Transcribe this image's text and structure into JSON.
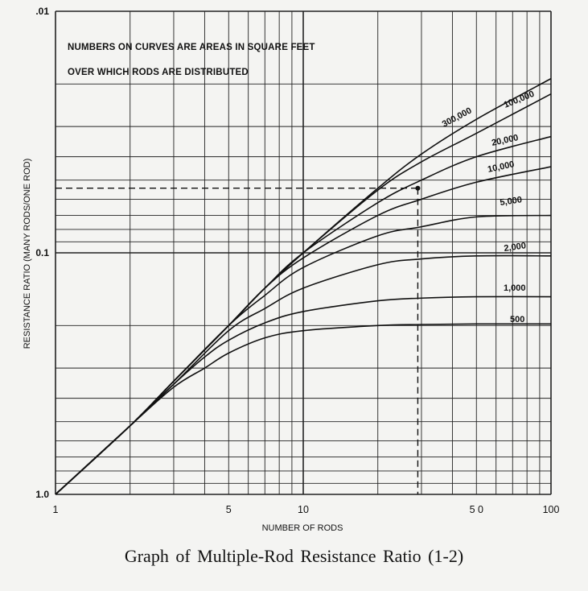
{
  "caption": "Graph of Multiple-Rod Resistance Ratio (1-2)",
  "chart_data": {
    "type": "line",
    "title": "",
    "xlabel": "NUMBER OF RODS",
    "ylabel": "RESISTANCE RATIO (MANY RODS/ONE ROD)",
    "x_scale": "log",
    "y_scale": "log",
    "y_direction": "reversed",
    "xlim": [
      1,
      100
    ],
    "ylim": [
      1.0,
      0.01
    ],
    "x_ticks": [
      {
        "value": 1,
        "label": "1"
      },
      {
        "value": 5,
        "label": "5"
      },
      {
        "value": 10,
        "label": "10"
      },
      {
        "value": 50,
        "label": "5 0"
      },
      {
        "value": 100,
        "label": "100"
      }
    ],
    "y_ticks": [
      {
        "value": 0.01,
        "label": ".01"
      },
      {
        "value": 0.1,
        "label": "0.1"
      },
      {
        "value": 1.0,
        "label": "1.0"
      }
    ],
    "grid": true,
    "notes": [
      "NUMBERS ON CURVES ARE AREAS IN SQUARE FEET",
      "OVER WHICH RODS ARE DISTRIBUTED"
    ],
    "series": [
      {
        "name": "500",
        "x": [
          1,
          2,
          3,
          4,
          5,
          7,
          10,
          20,
          30,
          50,
          100
        ],
        "y": [
          1.0,
          0.52,
          0.36,
          0.3,
          0.26,
          0.225,
          0.21,
          0.2,
          0.198,
          0.197,
          0.197
        ]
      },
      {
        "name": "1,000",
        "x": [
          1,
          2,
          3,
          4,
          5,
          7,
          10,
          20,
          30,
          50,
          100
        ],
        "y": [
          1.0,
          0.52,
          0.35,
          0.27,
          0.23,
          0.195,
          0.175,
          0.158,
          0.154,
          0.152,
          0.152
        ]
      },
      {
        "name": "2,000",
        "x": [
          1,
          2,
          3,
          5,
          7,
          10,
          20,
          30,
          50,
          100
        ],
        "y": [
          1.0,
          0.52,
          0.35,
          0.21,
          0.17,
          0.14,
          0.112,
          0.106,
          0.103,
          0.103
        ]
      },
      {
        "name": "5,000",
        "x": [
          1,
          2,
          3,
          5,
          7,
          10,
          20,
          30,
          50,
          100
        ],
        "y": [
          1.0,
          0.52,
          0.34,
          0.2,
          0.15,
          0.115,
          0.085,
          0.078,
          0.071,
          0.07
        ]
      },
      {
        "name": "10,000",
        "x": [
          1,
          2,
          3,
          5,
          7,
          10,
          20,
          30,
          50,
          100
        ],
        "y": [
          1.0,
          0.52,
          0.34,
          0.2,
          0.14,
          0.105,
          0.07,
          0.06,
          0.051,
          0.044
        ]
      },
      {
        "name": "20,000",
        "x": [
          1,
          2,
          3,
          5,
          7,
          10,
          20,
          30,
          50,
          100
        ],
        "y": [
          1.0,
          0.52,
          0.34,
          0.2,
          0.14,
          0.1,
          0.062,
          0.05,
          0.04,
          0.033
        ]
      },
      {
        "name": "100,000",
        "x": [
          1,
          2,
          3,
          5,
          7,
          10,
          20,
          30,
          50,
          100
        ],
        "y": [
          1.0,
          0.52,
          0.34,
          0.2,
          0.14,
          0.1,
          0.055,
          0.042,
          0.032,
          0.022
        ]
      },
      {
        "name": "300,000",
        "x": [
          1,
          2,
          3,
          5,
          7,
          10,
          20,
          30,
          50,
          100
        ],
        "y": [
          1.0,
          0.52,
          0.34,
          0.2,
          0.14,
          0.1,
          0.054,
          0.039,
          0.028,
          0.019
        ]
      }
    ],
    "highlight_point": {
      "x": 29,
      "y": 0.054
    }
  }
}
